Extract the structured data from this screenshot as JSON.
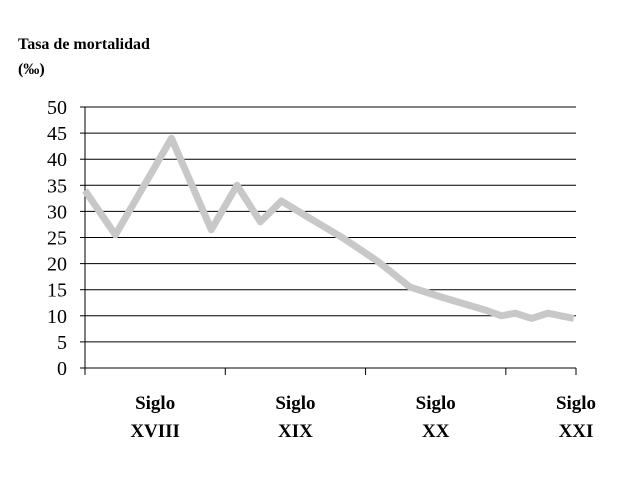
{
  "chart_data": {
    "type": "line",
    "title": "",
    "ylabel_lines": [
      "Tasa de mortalidad",
      "(‰)"
    ],
    "ylim": [
      0,
      50
    ],
    "yticks": [
      "0",
      "5",
      "10",
      "15",
      "20",
      "25",
      "30",
      "35",
      "40",
      "45",
      "50"
    ],
    "grid": true,
    "xlim": [
      0,
      21
    ],
    "x_category_labels": [
      {
        "lines": [
          "Siglo",
          "XVIII"
        ],
        "x": 3
      },
      {
        "lines": [
          "Siglo",
          "XIX"
        ],
        "x": 9
      },
      {
        "lines": [
          "Siglo",
          "XX"
        ],
        "x": 15
      },
      {
        "lines": [
          "Siglo",
          "XXI"
        ],
        "x": 21
      }
    ],
    "x_ticks": [
      0,
      6,
      12,
      18,
      21
    ],
    "series": [
      {
        "color": "#c8c8c8",
        "points": [
          [
            0,
            34
          ],
          [
            1.3,
            25.5
          ],
          [
            3.7,
            44
          ],
          [
            5.4,
            26.5
          ],
          [
            6.5,
            35
          ],
          [
            7.5,
            28
          ],
          [
            8.4,
            32
          ],
          [
            9.5,
            29
          ],
          [
            11,
            25
          ],
          [
            12.5,
            20.5
          ],
          [
            13.9,
            15.5
          ],
          [
            15.3,
            13.5
          ],
          [
            17.2,
            11
          ],
          [
            17.8,
            10
          ],
          [
            18.4,
            10.5
          ],
          [
            19.1,
            9.5
          ],
          [
            19.8,
            10.5
          ],
          [
            20.9,
            9.5
          ]
        ]
      }
    ]
  }
}
